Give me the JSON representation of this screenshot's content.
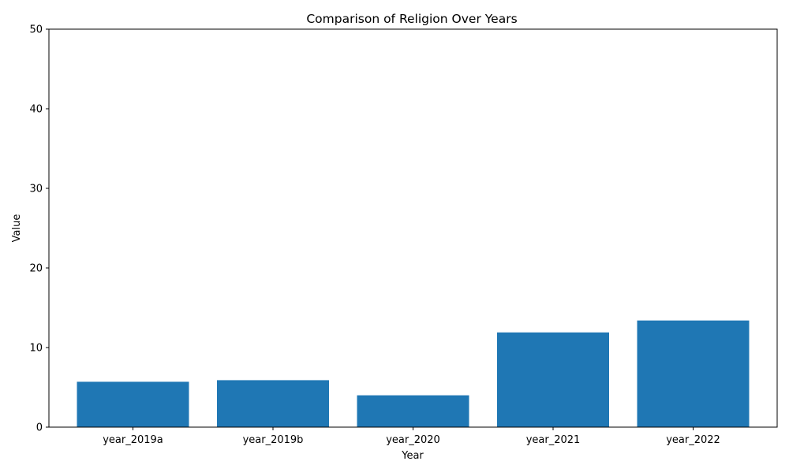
{
  "chart_data": {
    "type": "bar",
    "title": "Comparison of Religion Over Years",
    "xlabel": "Year",
    "ylabel": "Value",
    "categories": [
      "year_2019a",
      "year_2019b",
      "year_2020",
      "year_2021",
      "year_2022"
    ],
    "values": [
      5.7,
      5.9,
      4.0,
      11.9,
      13.4
    ],
    "ylim": [
      0,
      50
    ],
    "yticks": [
      0,
      10,
      20,
      30,
      40,
      50
    ],
    "ytick_labels": [
      "0",
      "10",
      "20",
      "30",
      "40",
      "50"
    ],
    "bar_color": "#1f77b4",
    "grid": false,
    "legend": "none"
  }
}
